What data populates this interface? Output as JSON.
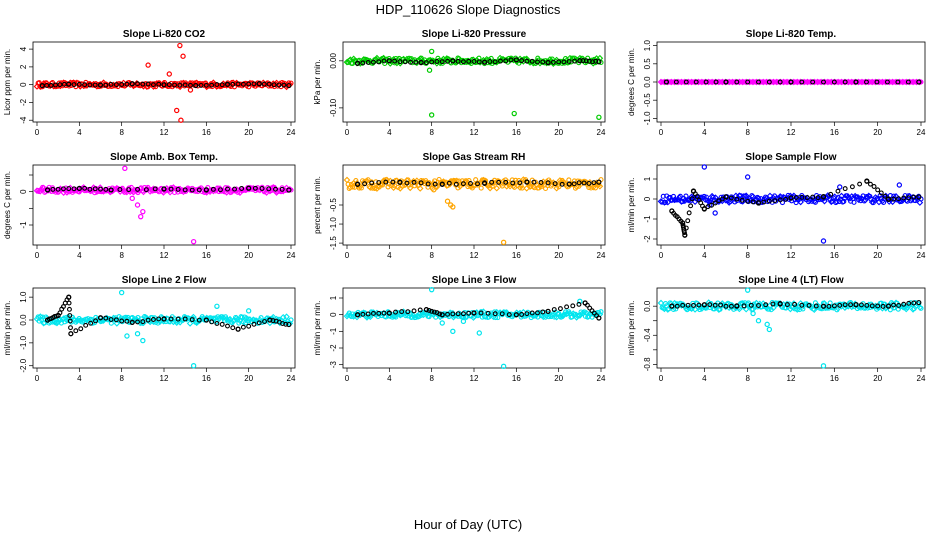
{
  "page": {
    "title": "HDP_110626  Slope Diagnostics",
    "xlabel": "Hour of Day (UTC)"
  },
  "chart_data": [
    {
      "type": "scatter",
      "title": "Slope Li-820 CO2",
      "ylabel": "Licor ppm per min.",
      "xlim": [
        0,
        24
      ],
      "ylim": [
        -4.2,
        4.8
      ],
      "yticks": [
        -4,
        -2,
        0,
        2,
        4
      ],
      "xticks": [
        0,
        4,
        8,
        12,
        16,
        20,
        24
      ],
      "color": "#ff0000",
      "base": 0,
      "spread": 0.25,
      "black_series": [
        {
          "x": 0.5,
          "y": -0.1
        },
        {
          "x": 3,
          "y": 0.05
        },
        {
          "x": 6,
          "y": -0.05
        },
        {
          "x": 9,
          "y": 0.1
        },
        {
          "x": 12,
          "y": 0
        },
        {
          "x": 15,
          "y": -0.1
        },
        {
          "x": 18,
          "y": 0.05
        },
        {
          "x": 21,
          "y": 0.1
        },
        {
          "x": 23.8,
          "y": -0.1
        }
      ],
      "outliers": [
        {
          "x": 10.5,
          "y": 2.2
        },
        {
          "x": 13.5,
          "y": 4.4
        },
        {
          "x": 13.8,
          "y": 3.2
        },
        {
          "x": 13.2,
          "y": -2.9
        },
        {
          "x": 13.6,
          "y": -4.0
        },
        {
          "x": 12.5,
          "y": 1.2
        },
        {
          "x": 14.5,
          "y": -0.6
        }
      ]
    },
    {
      "type": "scatter",
      "title": "Slope Li-820 Pressure",
      "ylabel": "kPa per min.",
      "xlim": [
        0,
        24
      ],
      "ylim": [
        -0.13,
        0.04
      ],
      "yticks": [
        -0.1,
        0.0
      ],
      "ytick_labels": [
        "-0.10",
        "0.00"
      ],
      "xticks": [
        0,
        4,
        8,
        12,
        16,
        20,
        24
      ],
      "color": "#00cc00",
      "base": 0,
      "spread": 0.006,
      "black_series": [
        {
          "x": 1,
          "y": -0.005
        },
        {
          "x": 4,
          "y": 0
        },
        {
          "x": 7,
          "y": -0.004
        },
        {
          "x": 10,
          "y": 0
        },
        {
          "x": 13,
          "y": -0.003
        },
        {
          "x": 16,
          "y": 0.002
        },
        {
          "x": 19,
          "y": -0.004
        },
        {
          "x": 22,
          "y": 0
        },
        {
          "x": 23.8,
          "y": -0.002
        }
      ],
      "outliers": [
        {
          "x": 8,
          "y": -0.115
        },
        {
          "x": 15.8,
          "y": -0.112
        },
        {
          "x": 23.8,
          "y": -0.12
        },
        {
          "x": 8,
          "y": 0.02
        },
        {
          "x": 7.8,
          "y": -0.02
        }
      ]
    },
    {
      "type": "scatter",
      "title": "Slope Li-820 Temp.",
      "ylabel": "degrees C per min.",
      "xlim": [
        0,
        24
      ],
      "ylim": [
        -1.1,
        1.1
      ],
      "yticks": [
        -1.0,
        -0.5,
        0.0,
        0.5,
        1.0
      ],
      "ytick_labels": [
        "-1.0",
        "-0.5",
        "0.0",
        "0.5",
        "1.0"
      ],
      "xticks": [
        0,
        4,
        8,
        12,
        16,
        20,
        24
      ],
      "color": "#ff00ff",
      "base": 0,
      "spread": 0,
      "black_series": [
        {
          "x": 0.5,
          "y": 0
        },
        {
          "x": 6,
          "y": 0
        },
        {
          "x": 12,
          "y": 0
        },
        {
          "x": 18,
          "y": 0
        },
        {
          "x": 23.8,
          "y": 0
        }
      ],
      "outliers": []
    },
    {
      "type": "scatter",
      "title": "Slope Amb. Box Temp.",
      "ylabel": "degrees C per min.",
      "xlim": [
        0,
        24
      ],
      "ylim": [
        -1.6,
        0.8
      ],
      "yticks": [
        -1.0,
        -0.5,
        0.0,
        0.5
      ],
      "ytick_labels": [
        "-1",
        "",
        "0",
        ""
      ],
      "xticks": [
        0,
        4,
        8,
        12,
        16,
        20,
        24
      ],
      "color": "#ff00ff",
      "base": 0.05,
      "spread": 0.08,
      "black_series": [
        {
          "x": 1,
          "y": 0.05
        },
        {
          "x": 4,
          "y": 0.1
        },
        {
          "x": 7,
          "y": 0.05
        },
        {
          "x": 12,
          "y": 0.08
        },
        {
          "x": 16,
          "y": 0.05
        },
        {
          "x": 20,
          "y": 0.1
        },
        {
          "x": 23.8,
          "y": 0.05
        }
      ],
      "outliers": [
        {
          "x": 8.3,
          "y": 0.7
        },
        {
          "x": 9.5,
          "y": -0.4
        },
        {
          "x": 10,
          "y": -0.6
        },
        {
          "x": 9.8,
          "y": -0.75
        },
        {
          "x": 14.8,
          "y": -1.5
        },
        {
          "x": 9,
          "y": -0.2
        }
      ]
    },
    {
      "type": "scatter",
      "title": "Slope Gas Stream RH",
      "ylabel": "percent per min.",
      "xlim": [
        0,
        24
      ],
      "ylim": [
        -1.55,
        0.55
      ],
      "yticks": [
        -1.5,
        -1.0,
        -0.5
      ],
      "ytick_labels": [
        "-1.5",
        "-1.0",
        "-0.5"
      ],
      "xticks": [
        0,
        4,
        8,
        12,
        16,
        20,
        24
      ],
      "color": "#ffa500",
      "base": 0.05,
      "spread": 0.12,
      "black_series": [
        {
          "x": 1,
          "y": 0.05
        },
        {
          "x": 5,
          "y": 0.1
        },
        {
          "x": 9,
          "y": 0.05
        },
        {
          "x": 13,
          "y": 0.08
        },
        {
          "x": 17,
          "y": 0.1
        },
        {
          "x": 21,
          "y": 0.05
        },
        {
          "x": 23.8,
          "y": 0.1
        }
      ],
      "outliers": [
        {
          "x": 9.5,
          "y": -0.4
        },
        {
          "x": 10,
          "y": -0.55
        },
        {
          "x": 9.8,
          "y": -0.5
        },
        {
          "x": 14.8,
          "y": -1.48
        },
        {
          "x": 8.2,
          "y": -0.1
        }
      ]
    },
    {
      "type": "scatter",
      "title": "Slope Sample Flow",
      "ylabel": "ml/min per min.",
      "xlim": [
        0,
        24
      ],
      "ylim": [
        -2.3,
        1.7
      ],
      "yticks": [
        -2,
        -1,
        0,
        1
      ],
      "xticks": [
        0,
        4,
        8,
        12,
        16,
        20,
        24
      ],
      "color": "#0000ff",
      "base": 0,
      "spread": 0.18,
      "black_series": [
        {
          "x": 1,
          "y": -0.6
        },
        {
          "x": 2,
          "y": -1.2
        },
        {
          "x": 2.2,
          "y": -1.8
        },
        {
          "x": 3,
          "y": 0.4
        },
        {
          "x": 4,
          "y": -0.5
        },
        {
          "x": 6,
          "y": 0.1
        },
        {
          "x": 9,
          "y": -0.2
        },
        {
          "x": 12,
          "y": 0.05
        },
        {
          "x": 15,
          "y": 0.1
        },
        {
          "x": 19,
          "y": 0.9
        },
        {
          "x": 21,
          "y": 0
        },
        {
          "x": 23.8,
          "y": 0.1
        }
      ],
      "outliers": [
        {
          "x": 4,
          "y": 1.6
        },
        {
          "x": 8,
          "y": 1.1
        },
        {
          "x": 15,
          "y": -2.1
        },
        {
          "x": 5,
          "y": -0.7
        },
        {
          "x": 4.5,
          "y": -0.3
        },
        {
          "x": 16.5,
          "y": 0.6
        },
        {
          "x": 22,
          "y": 0.7
        }
      ]
    },
    {
      "type": "scatter",
      "title": "Slope Line 2 Flow",
      "ylabel": "ml/min per min.",
      "xlim": [
        0,
        24
      ],
      "ylim": [
        -2.1,
        1.4
      ],
      "yticks": [
        -2.0,
        -1.0,
        0.0,
        1.0
      ],
      "ytick_labels": [
        "-2.0",
        "-1.0",
        "0.0",
        "1.0"
      ],
      "xticks": [
        0,
        4,
        8,
        12,
        16,
        20,
        24
      ],
      "color": "#00e5ee",
      "base": 0,
      "spread": 0.15,
      "black_series": [
        {
          "x": 1,
          "y": 0
        },
        {
          "x": 2,
          "y": 0.2
        },
        {
          "x": 3,
          "y": 1.0
        },
        {
          "x": 3.2,
          "y": -0.6
        },
        {
          "x": 6,
          "y": 0.1
        },
        {
          "x": 9,
          "y": -0.1
        },
        {
          "x": 12,
          "y": 0.05
        },
        {
          "x": 16,
          "y": 0
        },
        {
          "x": 19,
          "y": -0.4
        },
        {
          "x": 22,
          "y": 0
        },
        {
          "x": 23.8,
          "y": -0.2
        }
      ],
      "outliers": [
        {
          "x": 8,
          "y": 1.2
        },
        {
          "x": 8.5,
          "y": -0.7
        },
        {
          "x": 9.5,
          "y": -0.6
        },
        {
          "x": 10,
          "y": -0.9
        },
        {
          "x": 14.8,
          "y": -2.0
        },
        {
          "x": 17,
          "y": 0.6
        },
        {
          "x": 20,
          "y": 0.4
        }
      ]
    },
    {
      "type": "scatter",
      "title": "Slope Line 3 Flow",
      "ylabel": "ml/min per min.",
      "xlim": [
        0,
        24
      ],
      "ylim": [
        -3.2,
        1.6
      ],
      "yticks": [
        -3,
        -2,
        -1,
        0,
        1
      ],
      "xticks": [
        0,
        4,
        8,
        12,
        16,
        20,
        24
      ],
      "color": "#00e5ee",
      "base": 0,
      "spread": 0.18,
      "black_series": [
        {
          "x": 1,
          "y": 0
        },
        {
          "x": 4,
          "y": 0.1
        },
        {
          "x": 7.5,
          "y": 0.3
        },
        {
          "x": 9,
          "y": 0
        },
        {
          "x": 12,
          "y": 0.1
        },
        {
          "x": 16,
          "y": 0
        },
        {
          "x": 19,
          "y": 0.2
        },
        {
          "x": 22.5,
          "y": 0.7
        },
        {
          "x": 23.8,
          "y": -0.2
        }
      ],
      "outliers": [
        {
          "x": 8,
          "y": 1.5
        },
        {
          "x": 9,
          "y": -0.5
        },
        {
          "x": 10,
          "y": -1.0
        },
        {
          "x": 11,
          "y": -0.4
        },
        {
          "x": 12.5,
          "y": -1.1
        },
        {
          "x": 14.8,
          "y": -3.1
        },
        {
          "x": 22,
          "y": 0.8
        }
      ]
    },
    {
      "type": "scatter",
      "title": "Slope Line 4 (LT) Flow",
      "ylabel": "ml/min per min.",
      "xlim": [
        0,
        24
      ],
      "ylim": [
        -0.85,
        0.25
      ],
      "yticks": [
        -0.8,
        -0.6,
        -0.4,
        -0.2,
        0.0
      ],
      "ytick_labels": [
        "-0.8",
        "",
        "-0.4",
        "",
        "0.0"
      ],
      "xticks": [
        0,
        4,
        8,
        12,
        16,
        20,
        24
      ],
      "color": "#00e5ee",
      "base": 0,
      "spread": 0.05,
      "black_series": [
        {
          "x": 1,
          "y": 0
        },
        {
          "x": 4,
          "y": 0.02
        },
        {
          "x": 7,
          "y": 0
        },
        {
          "x": 11,
          "y": 0.03
        },
        {
          "x": 15,
          "y": 0
        },
        {
          "x": 18,
          "y": 0.02
        },
        {
          "x": 21,
          "y": 0
        },
        {
          "x": 23.8,
          "y": 0.05
        }
      ],
      "outliers": [
        {
          "x": 8,
          "y": 0.22
        },
        {
          "x": 9,
          "y": -0.2
        },
        {
          "x": 10,
          "y": -0.32
        },
        {
          "x": 9.8,
          "y": -0.25
        },
        {
          "x": 15,
          "y": -0.82
        },
        {
          "x": 8.5,
          "y": -0.1
        }
      ]
    }
  ]
}
